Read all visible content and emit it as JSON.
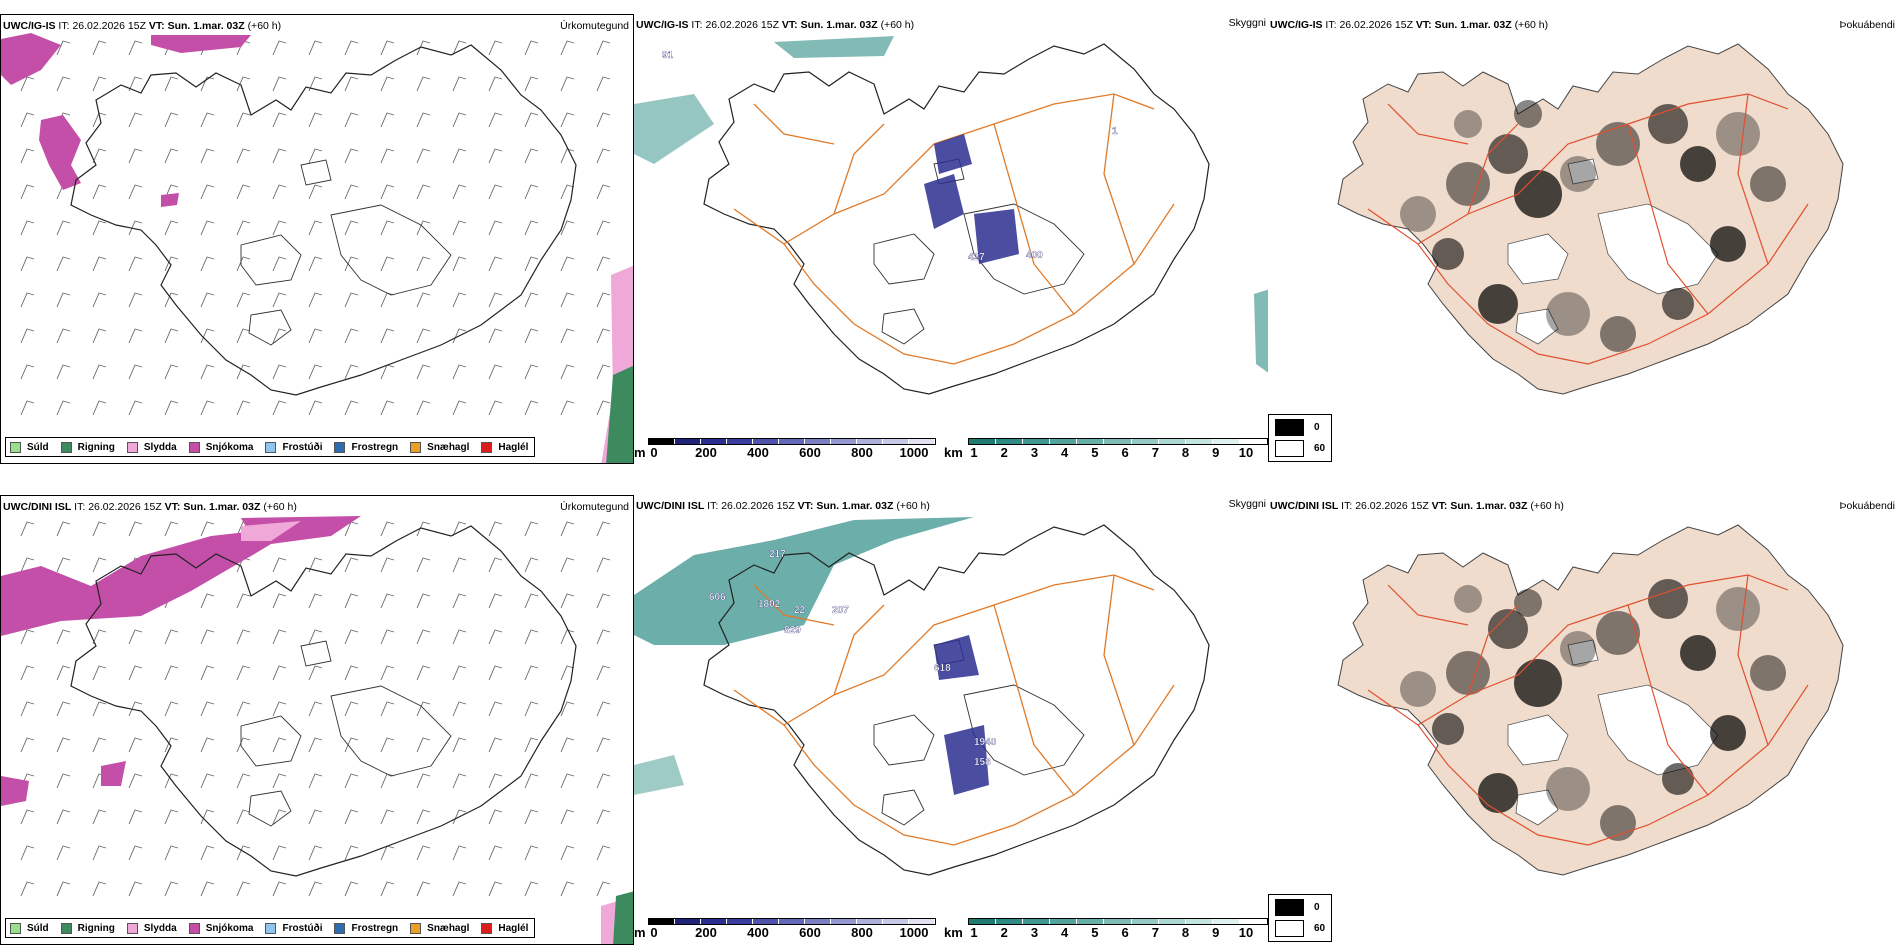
{
  "colors": {
    "suld": "#98e08a",
    "rigning": "#3c8a5e",
    "slydda": "#f0a8d8",
    "snjokoma": "#c44fa8",
    "frostudi": "#8fc4ec",
    "frostregn": "#2d6db0",
    "snaehagl": "#e8a028",
    "haglel": "#dd1c1c",
    "teal": "#2e8c84",
    "navy": "#2b2f8f",
    "orange_roads": "#e07a28",
    "land_beige": "#f0dccc"
  },
  "rows": [
    {
      "id": "ig-is",
      "model_title": "UWC/IG-IS",
      "it_label": "IT:",
      "it_value": "26.02.2026 15Z",
      "vt_label": "VT:",
      "vt_value": "Sun. 1.mar. 03Z",
      "lead": "(+60 h)",
      "precip_title": "Úrkomutegund",
      "vis_title": "Skyggni",
      "fog_title": "Þokuábendi",
      "cloud_labels": [
        "91",
        "427",
        "400",
        "1"
      ]
    },
    {
      "id": "dini-isl",
      "model_title": "UWC/DINI ISL",
      "it_label": "IT:",
      "it_value": "26.02.2026 15Z",
      "vt_label": "VT:",
      "vt_value": "Sun. 1.mar. 03Z",
      "lead": "(+60 h)",
      "precip_title": "Úrkomutegund",
      "vis_title": "Skyggni",
      "fog_title": "Þokuábendi",
      "cloud_labels": [
        "217",
        "606",
        "1802",
        "22",
        "207",
        "829",
        "618",
        "1940",
        "158"
      ]
    }
  ],
  "precip_legend": [
    {
      "label": "Súld",
      "color_key": "suld"
    },
    {
      "label": "Rigning",
      "color_key": "rigning"
    },
    {
      "label": "Slydda",
      "color_key": "slydda"
    },
    {
      "label": "Snjókoma",
      "color_key": "snjokoma"
    },
    {
      "label": "Frostúði",
      "color_key": "frostudi"
    },
    {
      "label": "Frostregn",
      "color_key": "frostregn"
    },
    {
      "label": "Snæhagl",
      "color_key": "snaehagl"
    },
    {
      "label": "Haglél",
      "color_key": "haglel"
    }
  ],
  "cloudbase_scale": {
    "unit": "m",
    "ticks": [
      "0",
      "200",
      "400",
      "600",
      "800",
      "1000"
    ],
    "colors": [
      "#000000",
      "#20237a",
      "#2b2f8f",
      "#3a3f9f",
      "#4d53ac",
      "#6368b8",
      "#7b80c4",
      "#9497d0",
      "#aeb0dc",
      "#c8c9e8",
      "#e2e2f3"
    ]
  },
  "visibility_scale": {
    "unit": "km",
    "ticks": [
      "1",
      "2",
      "3",
      "4",
      "5",
      "6",
      "7",
      "8",
      "9",
      "10"
    ],
    "colors": [
      "#217a72",
      "#2e8c84",
      "#3f978f",
      "#52a39b",
      "#67b0a8",
      "#7dbdb6",
      "#95cac4",
      "#acd7d2",
      "#c4e4e0",
      "#dff1ef",
      "#ffffff"
    ]
  },
  "fog_legend": [
    {
      "label": "0",
      "color": "#000000"
    },
    {
      "label": "60",
      "color": "#ffffff"
    }
  ]
}
